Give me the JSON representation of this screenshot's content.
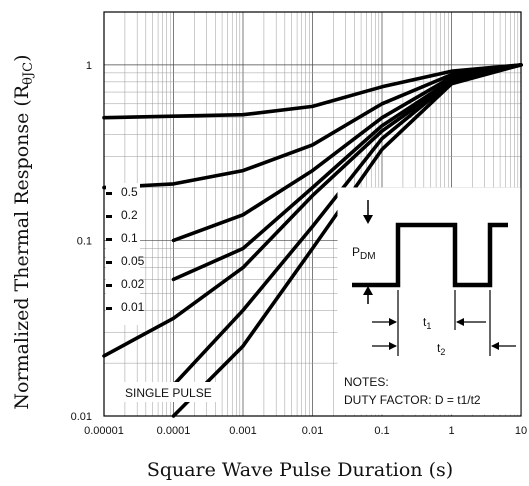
{
  "chart_data": {
    "type": "line",
    "xlabel": "Square Wave Pulse Duration (s)",
    "ylabel": "Normalized Thermal Response (R",
    "ylabel_sub": "θJC",
    "ylabel_close": ")",
    "x_scale": "log",
    "y_scale": "log",
    "xlim": [
      1e-05,
      10
    ],
    "ylim": [
      0.01,
      2
    ],
    "grid": true,
    "x_ticks": [
      "0.00001",
      "0.0001",
      "0.001",
      "0.01",
      "0.1",
      "1",
      "10"
    ],
    "y_ticks": [
      "0.01",
      "0.1",
      "1"
    ],
    "series": [
      {
        "name": "0.5",
        "x": [
          1e-05,
          0.001,
          0.01,
          0.1,
          1,
          10
        ],
        "y": [
          0.5,
          0.52,
          0.58,
          0.75,
          0.92,
          1.0
        ]
      },
      {
        "name": "0.2",
        "x": [
          1e-05,
          0.0001,
          0.001,
          0.01,
          0.1,
          1,
          10
        ],
        "y": [
          0.2,
          0.21,
          0.25,
          0.35,
          0.6,
          0.88,
          1.0
        ]
      },
      {
        "name": "0.1",
        "x": [
          0.0001,
          0.001,
          0.01,
          0.1,
          1,
          10
        ],
        "y": [
          0.1,
          0.14,
          0.25,
          0.5,
          0.85,
          1.0
        ]
      },
      {
        "name": "0.05",
        "x": [
          0.0001,
          0.001,
          0.01,
          0.1,
          1,
          10
        ],
        "y": [
          0.06,
          0.09,
          0.2,
          0.45,
          0.82,
          1.0
        ]
      },
      {
        "name": "0.02",
        "x": [
          1e-05,
          0.0001,
          0.001,
          0.01,
          0.1,
          1,
          10
        ],
        "y": [
          0.022,
          0.036,
          0.07,
          0.18,
          0.42,
          0.8,
          1.0
        ]
      },
      {
        "name": "0.01",
        "x": [
          0.0001,
          0.001,
          0.01,
          0.1,
          1,
          10
        ],
        "y": [
          0.015,
          0.04,
          0.12,
          0.38,
          0.8,
          1.0
        ]
      },
      {
        "name": "SINGLE PULSE",
        "x": [
          0.0001,
          0.001,
          0.01,
          0.1,
          1,
          10
        ],
        "y": [
          0.01,
          0.025,
          0.09,
          0.33,
          0.78,
          1.0
        ]
      }
    ],
    "curve_labels": [
      "0.5",
      "0.2",
      "0.1",
      "0.05",
      "0.02",
      "0.01"
    ],
    "single_pulse_label": "SINGLE PULSE",
    "inset": {
      "pdm_main": "P",
      "pdm_sub": "DM",
      "t1_main": "t",
      "t1_sub": "1",
      "t2_main": "t",
      "t2_sub": "2",
      "notes_title": "NOTES:",
      "notes_text": "DUTY FACTOR: D = t1/t2"
    }
  }
}
